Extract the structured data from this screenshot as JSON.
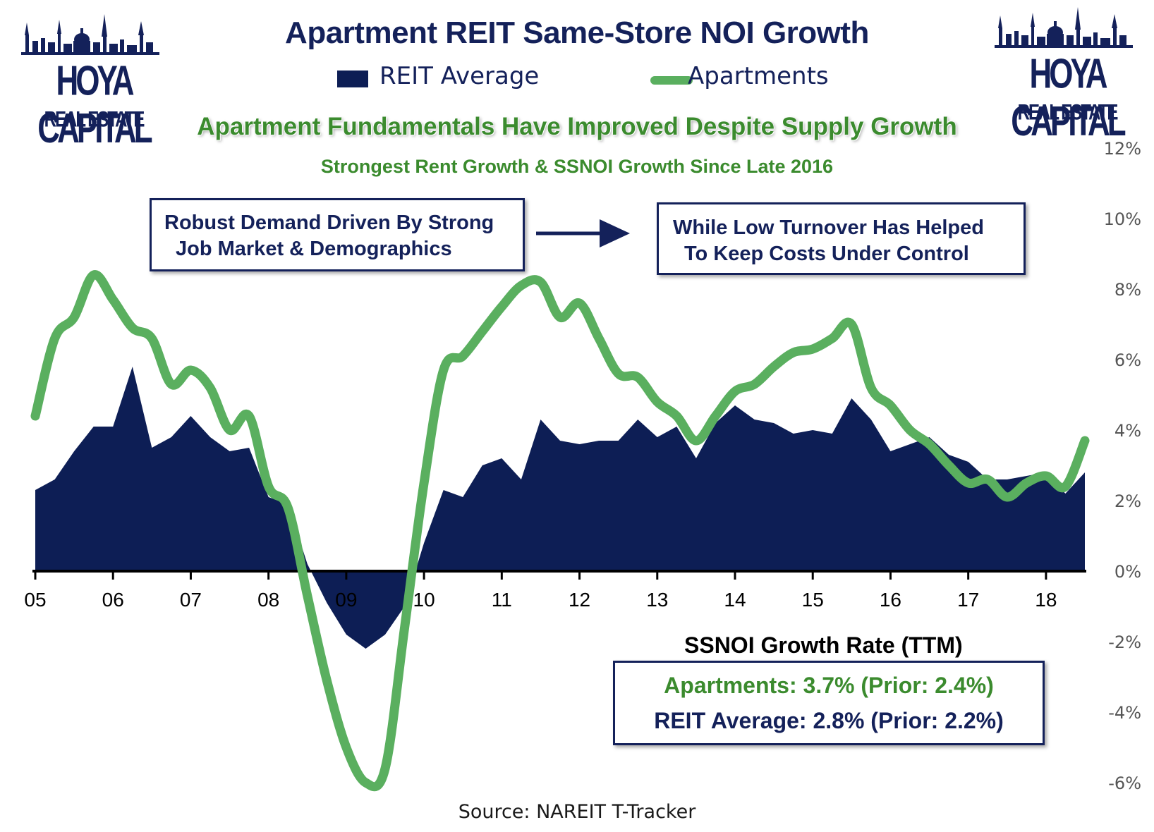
{
  "title": "Apartment REIT Same-Store NOI Growth",
  "headline": "Apartment Fundamentals Have Improved Despite Supply Growth",
  "subheadline": "Strongest Rent Growth & SSNOI Growth Since Late 2016",
  "logo": {
    "line1": "HOYA CAPITAL",
    "line2": "REAL ESTATE"
  },
  "notes": {
    "left": [
      "Robust Demand Driven By Strong",
      "Job Market & Demographics"
    ],
    "right": [
      "While Low Turnover Has Helped",
      "To Keep Costs Under Control"
    ]
  },
  "stats": {
    "title": "SSNOI Growth Rate (TTM)",
    "apartments": "Apartments: 3.7% (Prior: 2.4%)",
    "reit": "REIT Average: 2.8% (Prior: 2.2%)"
  },
  "source": "Source: NAREIT T-Tracker",
  "colors": {
    "reit_area": "#0d1e55",
    "apartments_line": "#5aaf5f",
    "title": "#14215a",
    "headline": "#3b8b2e"
  },
  "chart_data": {
    "type": "area",
    "x": [
      2005.0,
      2005.25,
      2005.5,
      2005.75,
      2006.0,
      2006.25,
      2006.5,
      2006.75,
      2007.0,
      2007.25,
      2007.5,
      2007.75,
      2008.0,
      2008.25,
      2008.5,
      2008.75,
      2009.0,
      2009.25,
      2009.5,
      2009.75,
      2010.0,
      2010.25,
      2010.5,
      2010.75,
      2011.0,
      2011.25,
      2011.5,
      2011.75,
      2012.0,
      2012.25,
      2012.5,
      2012.75,
      2013.0,
      2013.25,
      2013.5,
      2013.75,
      2014.0,
      2014.25,
      2014.5,
      2014.75,
      2015.0,
      2015.25,
      2015.5,
      2015.75,
      2016.0,
      2016.25,
      2016.5,
      2016.75,
      2017.0,
      2017.25,
      2017.5,
      2017.75,
      2018.0,
      2018.25,
      2018.5
    ],
    "xticks": [
      "05",
      "06",
      "07",
      "08",
      "09",
      "10",
      "11",
      "12",
      "13",
      "14",
      "15",
      "16",
      "17",
      "18"
    ],
    "xtick_values": [
      2005,
      2006,
      2007,
      2008,
      2009,
      2010,
      2011,
      2012,
      2013,
      2014,
      2015,
      2016,
      2017,
      2018
    ],
    "yticks": [
      "12%",
      "10%",
      "8%",
      "6%",
      "4%",
      "2%",
      "0%",
      "-2%",
      "-4%",
      "-6%"
    ],
    "ylim": [
      -6,
      12
    ],
    "legend": "top",
    "series": [
      {
        "name": "REIT Average",
        "type": "area",
        "values": [
          2.3,
          2.6,
          3.4,
          4.1,
          4.1,
          5.8,
          3.5,
          3.8,
          4.4,
          3.8,
          3.4,
          3.5,
          2.1,
          1.9,
          0.2,
          -0.9,
          -1.8,
          -2.2,
          -1.8,
          -1.0,
          0.8,
          2.3,
          2.1,
          3.0,
          3.2,
          2.6,
          4.3,
          3.7,
          3.6,
          3.7,
          3.7,
          4.3,
          3.8,
          4.1,
          3.2,
          4.2,
          4.7,
          4.3,
          4.2,
          3.9,
          4.0,
          3.9,
          4.9,
          4.3,
          3.4,
          3.6,
          3.8,
          3.3,
          3.1,
          2.6,
          2.6,
          2.7,
          2.8,
          2.2,
          2.8
        ]
      },
      {
        "name": "Apartments",
        "type": "line",
        "values": [
          4.4,
          6.6,
          7.2,
          8.4,
          7.7,
          6.9,
          6.6,
          5.3,
          5.7,
          5.2,
          4.0,
          4.4,
          2.4,
          1.8,
          -0.7,
          -3.1,
          -5.0,
          -6.0,
          -5.6,
          -1.6,
          2.5,
          5.7,
          6.1,
          6.8,
          7.5,
          8.1,
          8.2,
          7.2,
          7.6,
          6.6,
          5.6,
          5.5,
          4.8,
          4.4,
          3.7,
          4.4,
          5.1,
          5.3,
          5.8,
          6.2,
          6.3,
          6.6,
          7.0,
          5.2,
          4.7,
          4.0,
          3.6,
          3.0,
          2.5,
          2.6,
          2.1,
          2.5,
          2.7,
          2.4,
          3.7
        ]
      }
    ]
  }
}
